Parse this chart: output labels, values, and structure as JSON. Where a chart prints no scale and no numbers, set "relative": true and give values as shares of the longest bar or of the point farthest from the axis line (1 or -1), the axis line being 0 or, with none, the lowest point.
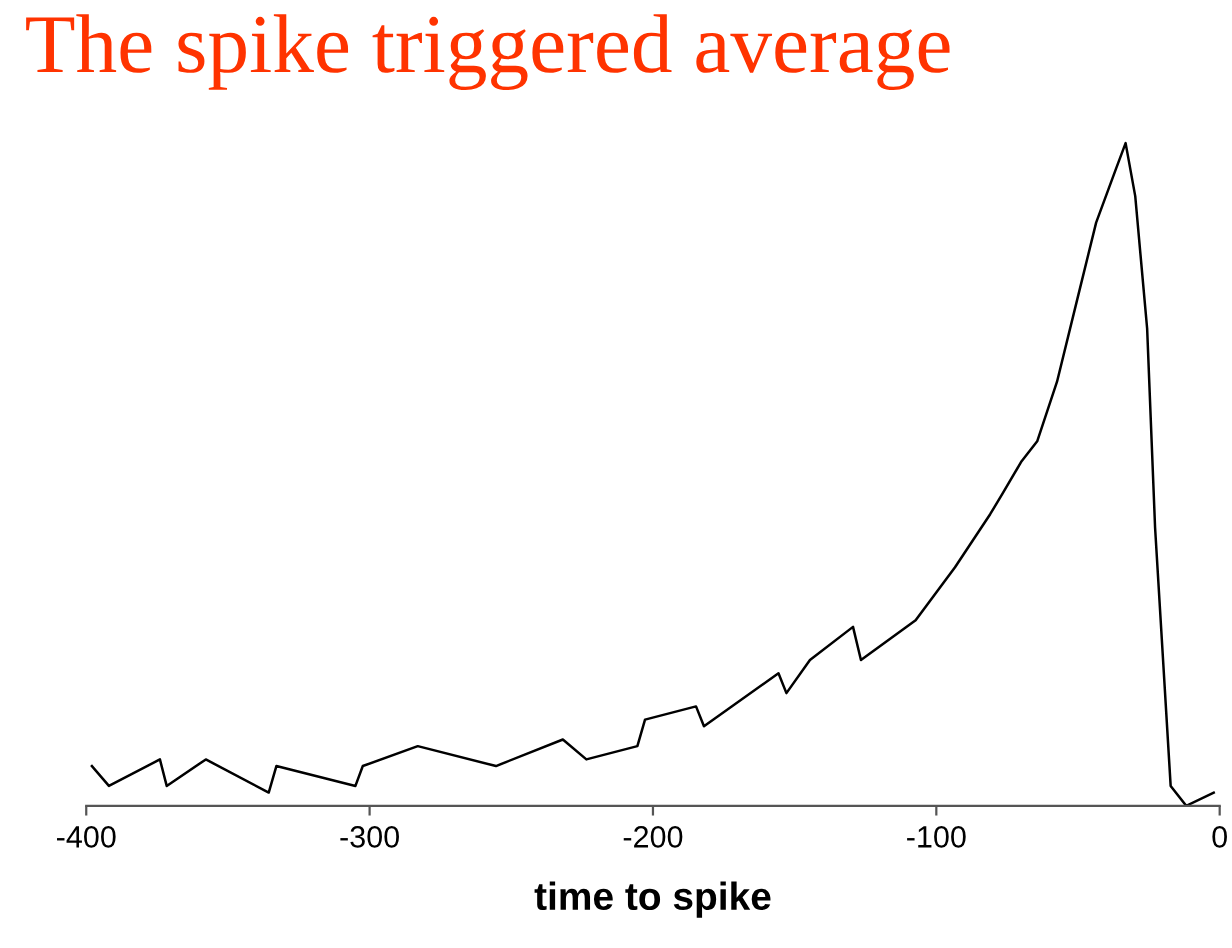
{
  "chart_data": {
    "type": "line",
    "title": "The spike triggered average",
    "xlabel": "time to spike",
    "relative": true,
    "xlim": [
      -400,
      0
    ],
    "xticks": [
      -400,
      -300,
      -200,
      -100,
      0
    ],
    "grid": false,
    "tick_labels": "x",
    "series": [
      {
        "color": "#000000",
        "x": [
          -398,
          -392,
          -374,
          -371.6,
          -357.8,
          -335.6,
          -332.9,
          -305,
          -302.4,
          -283,
          -255.4,
          -231.8,
          -223.5,
          -205.5,
          -202.8,
          -184.8,
          -182,
          -155.7,
          -152.9,
          -144.6,
          -129.4,
          -126.6,
          -107.3,
          -93.4,
          -81,
          -76.8,
          -69.9,
          -64.4,
          -57.4,
          -50.5,
          -43.6,
          -36.7,
          -33.2,
          -29.8,
          -25.6,
          -22.8,
          -17.3,
          -11.8,
          -2.1
        ],
        "values": [
          0.06,
          0.03,
          0.07,
          0.03,
          0.07,
          0.02,
          0.06,
          0.03,
          0.06,
          0.09,
          0.06,
          0.1,
          0.07,
          0.09,
          0.13,
          0.15,
          0.12,
          0.2,
          0.17,
          0.22,
          0.27,
          0.22,
          0.28,
          0.36,
          0.44,
          0.47,
          0.52,
          0.55,
          0.64,
          0.76,
          0.88,
          0.96,
          1.0,
          0.92,
          0.72,
          0.42,
          0.03,
          0.0,
          0.02
        ]
      }
    ]
  }
}
